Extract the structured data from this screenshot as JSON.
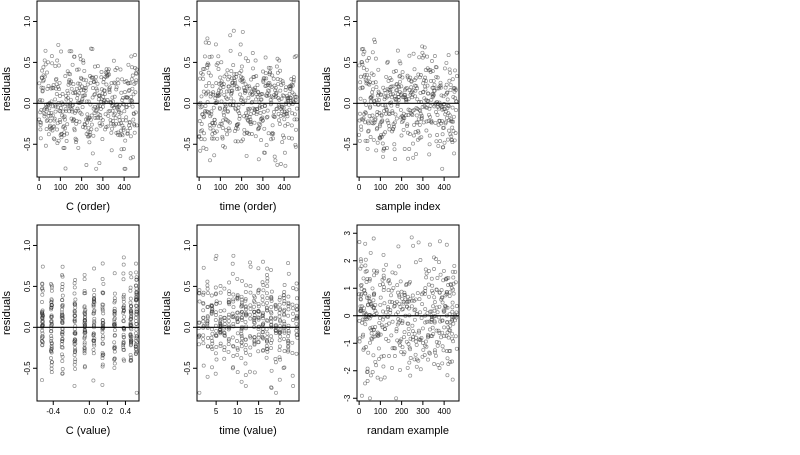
{
  "chart_data": [
    {
      "type": "scatter",
      "xlabel": "C (order)",
      "ylabel": "residuals",
      "xlim": [
        -10,
        470
      ],
      "ylim": [
        -0.9,
        1.25
      ],
      "xticks": [
        0,
        100,
        200,
        300,
        400
      ],
      "yticks": [
        -0.5,
        0.0,
        0.5,
        1.0
      ],
      "reference_line_y": 0,
      "points": {
        "n": 460,
        "x_range": [
          0,
          460
        ],
        "y_range": [
          -0.8,
          1.2
        ],
        "seed": 11,
        "mode": "order"
      }
    },
    {
      "type": "scatter",
      "xlabel": "time (order)",
      "ylabel": "residuals",
      "xlim": [
        -10,
        470
      ],
      "ylim": [
        -0.9,
        1.25
      ],
      "xticks": [
        0,
        100,
        200,
        300,
        400
      ],
      "yticks": [
        -0.5,
        0.0,
        0.5,
        1.0
      ],
      "reference_line_y": 0,
      "points": {
        "n": 460,
        "x_range": [
          0,
          460
        ],
        "y_range": [
          -0.8,
          1.2
        ],
        "seed": 23,
        "mode": "order"
      }
    },
    {
      "type": "scatter",
      "xlabel": "sample index",
      "ylabel": "residuals",
      "xlim": [
        -10,
        470
      ],
      "ylim": [
        -0.9,
        1.25
      ],
      "xticks": [
        0,
        100,
        200,
        300,
        400
      ],
      "yticks": [
        -0.5,
        0.0,
        0.5,
        1.0
      ],
      "reference_line_y": 0,
      "points": {
        "n": 460,
        "x_range": [
          0,
          460
        ],
        "y_range": [
          -0.8,
          1.2
        ],
        "seed": 37,
        "mode": "index"
      }
    },
    {
      "type": "scatter",
      "xlabel": "C (value)",
      "ylabel": "residuals",
      "xlim": [
        -0.58,
        0.55
      ],
      "ylim": [
        -0.9,
        1.25
      ],
      "xticks": [
        -0.4,
        0.0,
        0.2,
        0.4
      ],
      "xtick_labels": [
        "-0.4",
        "0.0",
        "0.2",
        "0.4"
      ],
      "yticks": [
        -0.5,
        0.0,
        0.5,
        1.0
      ],
      "reference_line_y": 0,
      "points": {
        "n": 460,
        "x_range": [
          -0.55,
          0.52
        ],
        "y_range": [
          -0.8,
          1.2
        ],
        "seed": 41,
        "mode": "value",
        "x_levels": [
          -0.52,
          -0.42,
          -0.3,
          -0.16,
          -0.05,
          0.05,
          0.15,
          0.28,
          0.38,
          0.46,
          0.52
        ]
      }
    },
    {
      "type": "scatter",
      "xlabel": "time (value)",
      "ylabel": "residuals",
      "xlim": [
        0.5,
        24.5
      ],
      "ylim": [
        -0.9,
        1.25
      ],
      "xticks": [
        5,
        10,
        15,
        20
      ],
      "yticks": [
        -0.5,
        0.0,
        0.5,
        1.0
      ],
      "reference_line_y": 0,
      "points": {
        "n": 460,
        "x_range": [
          1,
          24
        ],
        "y_range": [
          -0.8,
          1.2
        ],
        "seed": 53,
        "mode": "value",
        "x_levels": [
          1,
          2,
          3,
          4,
          5,
          6,
          7,
          8,
          9,
          10,
          11,
          12,
          13,
          14,
          15,
          16,
          17,
          18,
          19,
          20,
          21,
          22,
          23,
          24
        ]
      }
    },
    {
      "type": "scatter",
      "xlabel": "randam example",
      "ylabel": "residuals",
      "xlim": [
        -10,
        470
      ],
      "ylim": [
        -3.1,
        3.3
      ],
      "xticks": [
        0,
        100,
        200,
        300,
        400
      ],
      "yticks": [
        -3,
        -2,
        -1,
        0,
        1,
        2,
        3
      ],
      "reference_line_y": 0,
      "points": {
        "n": 460,
        "x_range": [
          0,
          460
        ],
        "y_range": [
          -3.0,
          3.0
        ],
        "seed": 67,
        "mode": "normal"
      }
    }
  ]
}
